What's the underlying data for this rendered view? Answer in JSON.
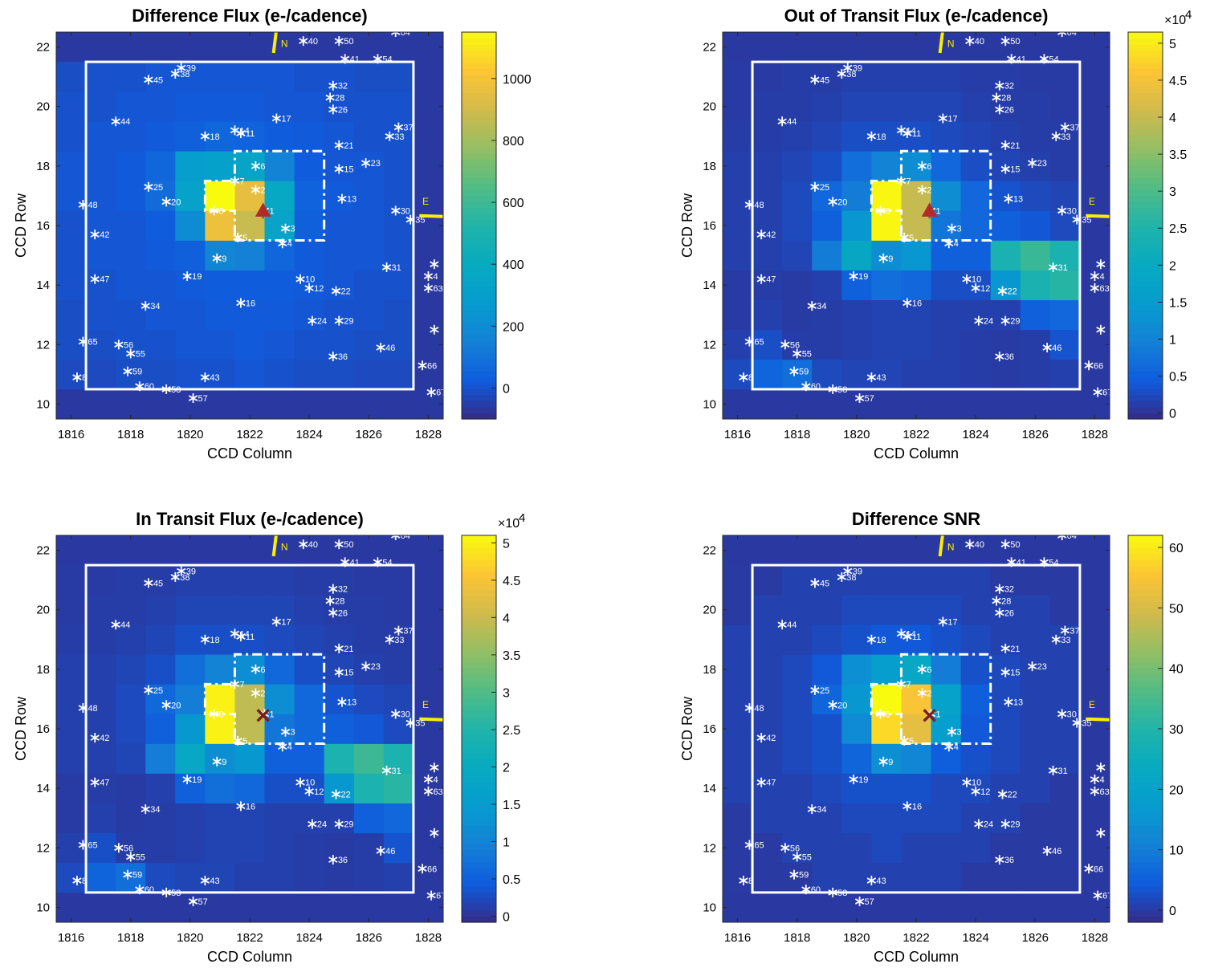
{
  "figure": {
    "x_axis_ticks": [
      "1816",
      "1818",
      "1820",
      "1822",
      "1824",
      "1826",
      "1828"
    ],
    "y_axis_ticks": [
      "10",
      "12",
      "14",
      "16",
      "18",
      "20",
      "22"
    ],
    "xlabel": "CCD Column",
    "ylabel": "CCD Row",
    "direction_labels": {
      "north": "N",
      "east": "E"
    },
    "colormap": "parula",
    "colors": {
      "outline": "#ffffff",
      "compass": "#ffee00",
      "star_marker": "#ffffff",
      "centroid_triangle": "#b22a2a",
      "centroid_cross": "#7a1f1f",
      "centroid_plus": "#2e8b57"
    }
  },
  "chart_data": [
    {
      "type": "heatmap",
      "title": "Difference Flux (e-/cadence)",
      "xlabel": "CCD Column",
      "ylabel": "CCD Row",
      "xlim": [
        1815.5,
        1828.5
      ],
      "ylim": [
        9.5,
        22.5
      ],
      "colorbar": {
        "range": [
          -100,
          1150
        ],
        "ticks": [
          "0",
          "200",
          "400",
          "600",
          "800",
          "1000"
        ],
        "tick_values": [
          0,
          200,
          400,
          600,
          800,
          1000
        ],
        "exponent": ""
      },
      "centroid_marker": "triangle",
      "pixel_grid": {
        "col_range": [
          1816,
          1827
        ],
        "row_range": [
          11,
          21
        ],
        "rows": [
          [
            -20,
            -20,
            -10,
            -10,
            0,
            0,
            10,
            0,
            -10,
            -10,
            -20,
            -20
          ],
          [
            -10,
            -10,
            0,
            0,
            10,
            10,
            20,
            10,
            0,
            0,
            -10,
            -10
          ],
          [
            -10,
            0,
            0,
            10,
            10,
            20,
            20,
            20,
            10,
            0,
            0,
            -10
          ],
          [
            0,
            0,
            10,
            10,
            20,
            30,
            30,
            30,
            20,
            10,
            0,
            0
          ],
          [
            0,
            10,
            10,
            20,
            40,
            170,
            150,
            60,
            20,
            10,
            10,
            0
          ],
          [
            0,
            10,
            10,
            30,
            200,
            980,
            880,
            340,
            40,
            10,
            10,
            0
          ],
          [
            10,
            10,
            20,
            80,
            330,
            1150,
            960,
            380,
            50,
            20,
            10,
            0
          ],
          [
            10,
            10,
            20,
            60,
            290,
            320,
            350,
            160,
            30,
            10,
            10,
            0
          ],
          [
            0,
            10,
            10,
            20,
            40,
            60,
            50,
            30,
            20,
            10,
            0,
            0
          ],
          [
            0,
            0,
            10,
            10,
            20,
            20,
            20,
            10,
            10,
            0,
            0,
            0
          ],
          [
            -10,
            0,
            0,
            10,
            10,
            10,
            10,
            10,
            0,
            0,
            -10,
            -10
          ]
        ]
      }
    },
    {
      "type": "heatmap",
      "title": "Out of Transit Flux (e-/cadence)",
      "xlabel": "CCD Column",
      "ylabel": "CCD Row",
      "xlim": [
        1815.5,
        1828.5
      ],
      "ylim": [
        9.5,
        22.5
      ],
      "colorbar": {
        "range": [
          -800,
          51500
        ],
        "ticks": [
          "0",
          "0.5",
          "1",
          "1.5",
          "2",
          "2.5",
          "3",
          "3.5",
          "4",
          "4.5",
          "5"
        ],
        "tick_values": [
          0,
          5000,
          10000,
          15000,
          20000,
          25000,
          30000,
          35000,
          40000,
          45000,
          50000
        ],
        "exponent": "×10",
        "exponent_power": "4"
      },
      "centroid_marker": "triangle",
      "pixel_grid": {
        "col_range": [
          1816,
          1827
        ],
        "row_range": [
          11,
          21
        ],
        "rows": [
          [
            2500,
            5500,
            7000,
            2500,
            2000,
            2000,
            1500,
            1500,
            1200,
            1000,
            1200,
            1500
          ],
          [
            1500,
            3000,
            1200,
            1200,
            1500,
            1800,
            1800,
            1500,
            1200,
            1000,
            1200,
            3500
          ],
          [
            1000,
            1500,
            1000,
            1200,
            1500,
            1800,
            1800,
            1500,
            1500,
            1500,
            5000,
            6000
          ],
          [
            1000,
            1200,
            1000,
            1500,
            5000,
            7000,
            6000,
            3000,
            3000,
            14000,
            24000,
            26000
          ],
          [
            1500,
            1500,
            2000,
            9000,
            19000,
            12000,
            14000,
            5000,
            5000,
            24000,
            28000,
            24000
          ],
          [
            1500,
            1500,
            2500,
            5000,
            14000,
            51000,
            40000,
            8000,
            6000,
            5000,
            4000,
            2500
          ],
          [
            1500,
            1500,
            2500,
            6000,
            9000,
            51000,
            40000,
            12000,
            6000,
            3500,
            2500,
            2000
          ],
          [
            1500,
            1500,
            2000,
            3000,
            7000,
            10000,
            12000,
            6000,
            3000,
            2000,
            1500,
            1200
          ],
          [
            1200,
            1200,
            1500,
            2000,
            3000,
            3000,
            3000,
            2500,
            2000,
            1500,
            1200,
            1200
          ],
          [
            1000,
            1200,
            1200,
            1500,
            2000,
            2000,
            2000,
            2000,
            1500,
            1200,
            1200,
            1000
          ],
          [
            1000,
            1000,
            1200,
            1200,
            1500,
            1500,
            1500,
            1500,
            1200,
            1200,
            1000,
            1000
          ]
        ]
      }
    },
    {
      "type": "heatmap",
      "title": "In Transit Flux (e-/cadence)",
      "xlabel": "CCD Column",
      "ylabel": "CCD Row",
      "xlim": [
        1815.5,
        1828.5
      ],
      "ylim": [
        9.5,
        22.5
      ],
      "colorbar": {
        "range": [
          -800,
          51000
        ],
        "ticks": [
          "0",
          "0.5",
          "1",
          "1.5",
          "2",
          "2.5",
          "3",
          "3.5",
          "4",
          "4.5",
          "5"
        ],
        "tick_values": [
          0,
          5000,
          10000,
          15000,
          20000,
          25000,
          30000,
          35000,
          40000,
          45000,
          50000
        ],
        "exponent": "×10",
        "exponent_power": "4"
      },
      "centroid_marker": "cross",
      "pixel_grid": {
        "col_range": [
          1816,
          1827
        ],
        "row_range": [
          11,
          21
        ],
        "rows": [
          [
            2500,
            5500,
            7000,
            2500,
            2000,
            2000,
            1500,
            1500,
            1200,
            1000,
            1200,
            1500
          ],
          [
            1500,
            3000,
            1200,
            1200,
            1500,
            1800,
            1800,
            1500,
            1200,
            1000,
            1200,
            3500
          ],
          [
            1000,
            1500,
            1000,
            1200,
            1500,
            1800,
            1800,
            1500,
            1500,
            1500,
            5000,
            6000
          ],
          [
            1000,
            1200,
            1000,
            1500,
            5000,
            7000,
            6000,
            3000,
            3000,
            14000,
            24000,
            26000
          ],
          [
            1500,
            1500,
            2000,
            9000,
            19000,
            12000,
            14000,
            5000,
            5000,
            24000,
            28000,
            24000
          ],
          [
            1500,
            1500,
            2500,
            5000,
            14000,
            50000,
            39000,
            8000,
            6000,
            5000,
            4000,
            2500
          ],
          [
            1500,
            1500,
            2500,
            6000,
            9000,
            50000,
            39000,
            12000,
            6000,
            3500,
            2500,
            2000
          ],
          [
            1500,
            1500,
            2000,
            3000,
            7000,
            10000,
            12000,
            6000,
            3000,
            2000,
            1500,
            1200
          ],
          [
            1200,
            1200,
            1500,
            2000,
            3000,
            3000,
            3000,
            2500,
            2000,
            1500,
            1200,
            1200
          ],
          [
            1000,
            1200,
            1200,
            1500,
            2000,
            2000,
            2000,
            2000,
            1500,
            1200,
            1200,
            1000
          ],
          [
            1000,
            1000,
            1200,
            1200,
            1500,
            1500,
            1500,
            1500,
            1200,
            1200,
            1000,
            1000
          ]
        ]
      }
    },
    {
      "type": "heatmap",
      "title": "Difference SNR",
      "xlabel": "CCD Column",
      "ylabel": "CCD Row",
      "xlim": [
        1815.5,
        1828.5
      ],
      "ylim": [
        9.5,
        22.5
      ],
      "colorbar": {
        "range": [
          -2,
          62
        ],
        "ticks": [
          "0",
          "10",
          "20",
          "30",
          "40",
          "50",
          "60"
        ],
        "tick_values": [
          0,
          10,
          20,
          30,
          40,
          50,
          60
        ],
        "exponent": ""
      },
      "centroid_marker": "cross",
      "pixel_grid": {
        "col_range": [
          1816,
          1827
        ],
        "row_range": [
          11,
          21
        ],
        "rows": [
          [
            0,
            0,
            0,
            1,
            1,
            1,
            1,
            1,
            0,
            0,
            0,
            0
          ],
          [
            0,
            0,
            1,
            1,
            1,
            2,
            1,
            1,
            1,
            0,
            0,
            0
          ],
          [
            0,
            1,
            1,
            1,
            2,
            2,
            2,
            2,
            1,
            1,
            0,
            0
          ],
          [
            1,
            1,
            1,
            2,
            3,
            3,
            3,
            2,
            2,
            1,
            1,
            0
          ],
          [
            1,
            1,
            2,
            3,
            6,
            14,
            12,
            5,
            3,
            2,
            1,
            1
          ],
          [
            1,
            1,
            2,
            3,
            13,
            58,
            52,
            18,
            4,
            2,
            1,
            1
          ],
          [
            1,
            1,
            2,
            6,
            16,
            62,
            55,
            20,
            5,
            2,
            1,
            1
          ],
          [
            1,
            1,
            2,
            4,
            14,
            18,
            22,
            10,
            3,
            2,
            1,
            1
          ],
          [
            1,
            1,
            1,
            2,
            3,
            4,
            4,
            3,
            2,
            1,
            1,
            1
          ],
          [
            0,
            1,
            1,
            1,
            2,
            2,
            2,
            2,
            1,
            1,
            1,
            0
          ],
          [
            0,
            0,
            1,
            1,
            1,
            1,
            1,
            1,
            1,
            0,
            0,
            0
          ]
        ]
      }
    }
  ],
  "stars": [
    {
      "id": "1",
      "col": 1822.5,
      "row": 16.5
    },
    {
      "id": "2",
      "col": 1822.2,
      "row": 17.2
    },
    {
      "id": "3",
      "col": 1823.2,
      "row": 15.9
    },
    {
      "id": "4",
      "col": 1823.1,
      "row": 15.4
    },
    {
      "id": "5",
      "col": 1821.6,
      "row": 15.6
    },
    {
      "id": "6",
      "col": 1822.2,
      "row": 18.0
    },
    {
      "id": "7",
      "col": 1821.5,
      "row": 17.5
    },
    {
      "id": "8",
      "col": 1820.8,
      "row": 16.5
    },
    {
      "id": "9",
      "col": 1820.9,
      "row": 14.9
    },
    {
      "id": "10",
      "col": 1823.7,
      "row": 14.2
    },
    {
      "id": "11",
      "col": 1821.7,
      "row": 19.1
    },
    {
      "id": "12",
      "col": 1824.0,
      "row": 13.9
    },
    {
      "id": "13",
      "col": 1825.1,
      "row": 16.9
    },
    {
      "id": "14",
      "col": 1821.5,
      "row": 19.2
    },
    {
      "id": "15",
      "col": 1825.0,
      "row": 17.9
    },
    {
      "id": "16",
      "col": 1821.7,
      "row": 13.4
    },
    {
      "id": "17",
      "col": 1822.9,
      "row": 19.6
    },
    {
      "id": "18",
      "col": 1820.5,
      "row": 19.0
    },
    {
      "id": "19",
      "col": 1819.9,
      "row": 14.3
    },
    {
      "id": "20",
      "col": 1819.2,
      "row": 16.8
    },
    {
      "id": "21",
      "col": 1825.0,
      "row": 18.7
    },
    {
      "id": "22",
      "col": 1824.9,
      "row": 13.8
    },
    {
      "id": "23",
      "col": 1825.9,
      "row": 18.1
    },
    {
      "id": "24",
      "col": 1824.1,
      "row": 12.8
    },
    {
      "id": "25",
      "col": 1818.6,
      "row": 17.3
    },
    {
      "id": "26",
      "col": 1824.8,
      "row": 19.9
    },
    {
      "id": "28",
      "col": 1824.7,
      "row": 20.3
    },
    {
      "id": "29",
      "col": 1825.0,
      "row": 12.8
    },
    {
      "id": "30",
      "col": 1826.9,
      "row": 16.5
    },
    {
      "id": "31",
      "col": 1826.6,
      "row": 14.6
    },
    {
      "id": "32",
      "col": 1824.8,
      "row": 20.7
    },
    {
      "id": "33",
      "col": 1826.7,
      "row": 19.0
    },
    {
      "id": "34",
      "col": 1818.5,
      "row": 13.3
    },
    {
      "id": "35",
      "col": 1827.4,
      "row": 16.2
    },
    {
      "id": "36",
      "col": 1824.8,
      "row": 11.6
    },
    {
      "id": "37",
      "col": 1827.0,
      "row": 19.3
    },
    {
      "id": "38",
      "col": 1819.5,
      "row": 21.1
    },
    {
      "id": "39",
      "col": 1819.7,
      "row": 21.3
    },
    {
      "id": "40",
      "col": 1823.8,
      "row": 22.2
    },
    {
      "id": "41",
      "col": 1825.2,
      "row": 21.6
    },
    {
      "id": "43",
      "col": 1820.5,
      "row": 10.9
    },
    {
      "id": "44",
      "col": 1817.5,
      "row": 19.5
    },
    {
      "id": "45",
      "col": 1818.6,
      "row": 20.9
    },
    {
      "id": "46",
      "col": 1826.4,
      "row": 11.9
    },
    {
      "id": "47",
      "col": 1816.8,
      "row": 14.2
    },
    {
      "id": "48",
      "col": 1816.4,
      "row": 16.7
    },
    {
      "id": "42",
      "col": 1816.8,
      "row": 15.7
    },
    {
      "id": "50",
      "col": 1825.0,
      "row": 22.2
    },
    {
      "id": "54",
      "col": 1826.3,
      "row": 21.6
    },
    {
      "id": "55",
      "col": 1818.0,
      "row": 11.7
    },
    {
      "id": "56",
      "col": 1817.6,
      "row": 12.0
    },
    {
      "id": "57",
      "col": 1820.1,
      "row": 10.2
    },
    {
      "id": "58",
      "col": 1819.2,
      "row": 10.5
    },
    {
      "id": "59",
      "col": 1817.9,
      "row": 11.1
    },
    {
      "id": "60",
      "col": 1818.3,
      "row": 10.6
    },
    {
      "id": "64",
      "col": 1826.9,
      "row": 22.5
    },
    {
      "id": "65",
      "col": 1816.4,
      "row": 12.1
    },
    {
      "id": "66",
      "col": 1827.8,
      "row": 11.3
    },
    {
      "id": "67",
      "col": 1828.1,
      "row": 10.4
    },
    {
      "id": "8",
      "col": 1816.2,
      "row": 10.9
    },
    {
      "id": "",
      "col": 1828.2,
      "row": 14.7
    },
    {
      "id": "4",
      "col": 1828.0,
      "row": 14.3
    },
    {
      "id": "63",
      "col": 1828.0,
      "row": 13.9
    },
    {
      "id": "",
      "col": 1828.2,
      "row": 12.5
    }
  ],
  "overlays": {
    "outer_box": {
      "col": [
        1816.5,
        1827.5
      ],
      "row": [
        10.5,
        21.5
      ]
    },
    "optimal_aperture": [
      [
        1821.5,
        15.5
      ],
      [
        1824.5,
        15.5
      ],
      [
        1824.5,
        18.5
      ],
      [
        1821.5,
        18.5
      ],
      [
        1821.5,
        17.5
      ],
      [
        1820.5,
        17.5
      ],
      [
        1820.5,
        16.5
      ],
      [
        1821.5,
        16.5
      ],
      [
        1821.5,
        15.5
      ]
    ],
    "centroid": {
      "col": 1822.45,
      "row": 16.45
    }
  }
}
